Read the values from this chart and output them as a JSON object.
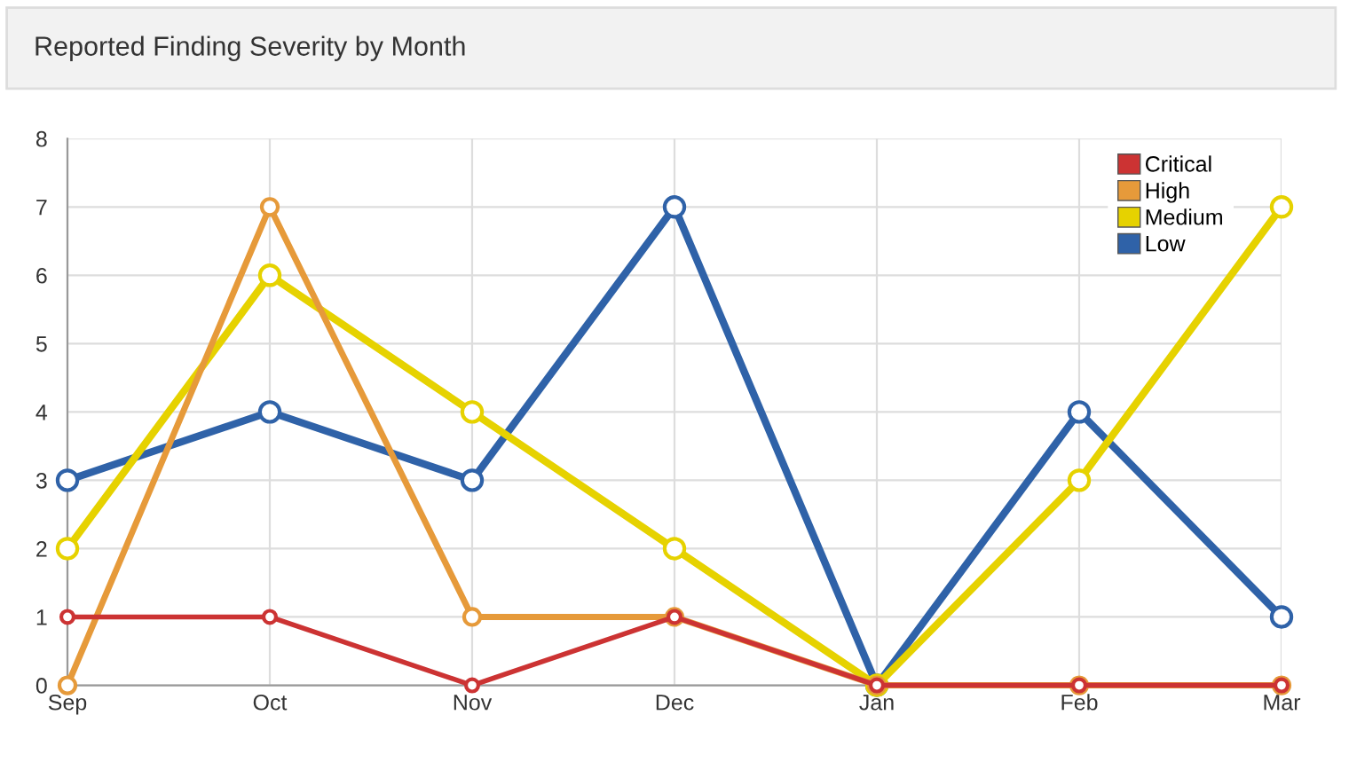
{
  "chart_data": {
    "type": "line",
    "title": "Reported Finding Severity by Month",
    "categories": [
      "Sep",
      "Oct",
      "Nov",
      "Dec",
      "Jan",
      "Feb",
      "Mar"
    ],
    "series": [
      {
        "name": "Critical",
        "color": "#cc3333",
        "values": [
          1,
          1,
          0,
          1,
          0,
          0,
          0
        ]
      },
      {
        "name": "High",
        "color": "#e69a3a",
        "values": [
          0,
          7,
          1,
          1,
          0,
          0,
          0
        ]
      },
      {
        "name": "Medium",
        "color": "#e6d200",
        "values": [
          2,
          6,
          4,
          2,
          0,
          3,
          7
        ]
      },
      {
        "name": "Low",
        "color": "#2f62a8",
        "values": [
          3,
          4,
          3,
          7,
          0,
          4,
          1
        ]
      }
    ],
    "ylim": [
      0,
      8
    ],
    "yticks": [
      0,
      1,
      2,
      3,
      4,
      5,
      6,
      7,
      8
    ],
    "grid": true,
    "legend": "top right",
    "marker": "circle",
    "line_style": "solid"
  }
}
